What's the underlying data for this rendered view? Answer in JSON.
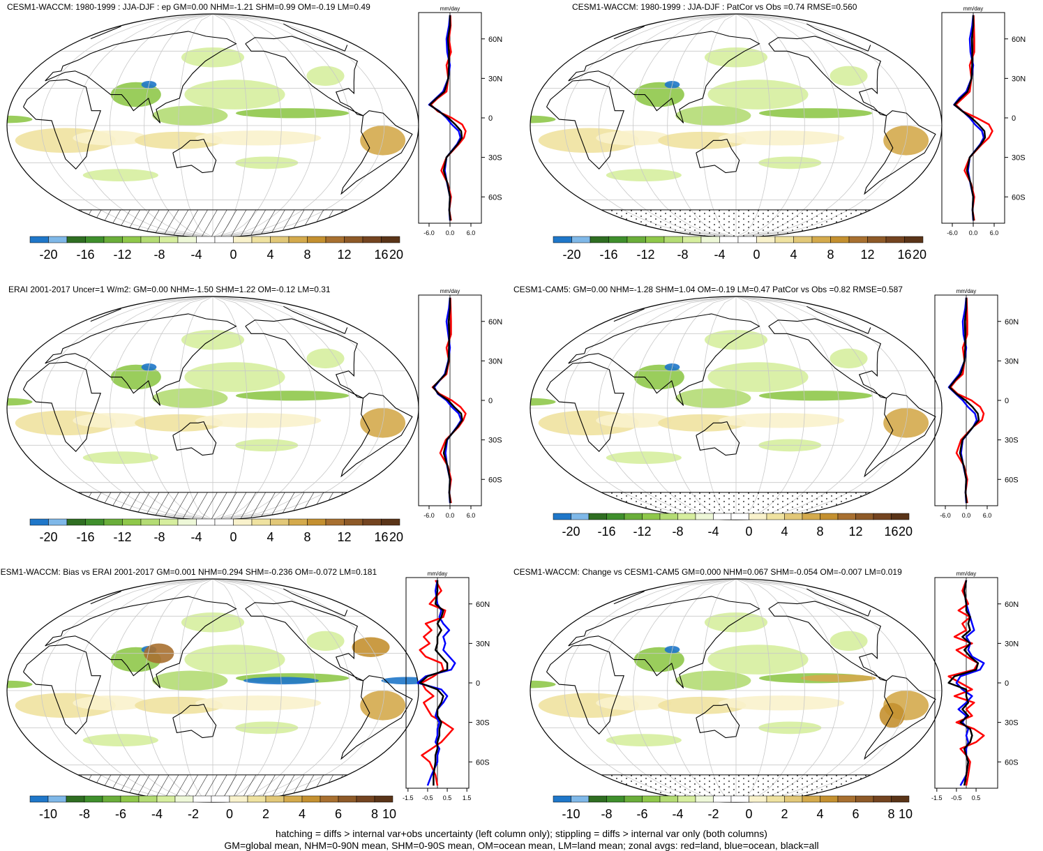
{
  "colors": {
    "scale": [
      "#1f77c9",
      "#7fb8e8",
      "#2f6e22",
      "#3f8f2c",
      "#6aae3a",
      "#8fc84a",
      "#b4dc74",
      "#d6ee9e",
      "#eef8d8",
      "#ffffff",
      "#ffffff",
      "#f9f2cc",
      "#efe2a0",
      "#e2c878",
      "#d4aa4c",
      "#c49030",
      "#a87030",
      "#8e5a28",
      "#744420",
      "#5a3418"
    ],
    "land_line": "#000000",
    "grid": "#c8c8c8",
    "series_land": "#ff0000",
    "series_ocean": "#0000ff",
    "series_all": "#000000"
  },
  "units": "mm/day",
  "panels": [
    {
      "id": "p1",
      "title": "CESM1-WACCM: 1980-1999 : JJA-DJF : ep GM=0.00 NHM=-1.21 SHM=0.99 OM=-0.19 LM=0.49",
      "hatch": true,
      "colorbar_ticks": [
        "-20",
        "-16",
        "-12",
        "-8",
        "-4",
        "0",
        "4",
        "8",
        "12",
        "16",
        "20"
      ],
      "zonal_xticks": [
        "-6.0",
        "0.0",
        "6.0"
      ],
      "zonal_xrange": [
        -9,
        9
      ],
      "lat_ticks": [
        "60N",
        "30N",
        "0",
        "30S",
        "60S"
      ]
    },
    {
      "id": "p2",
      "title": "CESM1-WACCM: 1980-1999 : JJA-DJF : PatCor vs Obs =0.74 RMSE=0.560",
      "hatch": false,
      "colorbar_ticks": [
        "-20",
        "-16",
        "-12",
        "-8",
        "-4",
        "0",
        "4",
        "8",
        "12",
        "16",
        "20"
      ],
      "zonal_xticks": [
        "-6.0",
        "0.0",
        "6.0"
      ],
      "zonal_xrange": [
        -9,
        9
      ],
      "lat_ticks": [
        "60N",
        "30N",
        "0",
        "30S",
        "60S"
      ]
    },
    {
      "id": "p3",
      "title": "ERAI 2001-2017 Uncer=1 W/m2: GM=0.00 NHM=-1.50 SHM=1.22 OM=-0.12 LM=0.31",
      "hatch": true,
      "colorbar_ticks": [
        "-20",
        "-16",
        "-12",
        "-8",
        "-4",
        "0",
        "4",
        "8",
        "12",
        "16",
        "20"
      ],
      "zonal_xticks": [
        "-6.0",
        "0.0",
        "6.0"
      ],
      "zonal_xrange": [
        -9,
        9
      ],
      "lat_ticks": [
        "60N",
        "30N",
        "0",
        "30S",
        "60S"
      ]
    },
    {
      "id": "p4",
      "title": "CESM1-CAM5: GM=0.00 NHM=-1.28 SHM=1.04 OM=-0.19 LM=0.47 PatCor vs Obs =0.82 RMSE=0.587",
      "hatch": false,
      "colorbar_ticks": [
        "-20",
        "-16",
        "-12",
        "-8",
        "-4",
        "0",
        "4",
        "8",
        "12",
        "16",
        "20"
      ],
      "zonal_xticks": [
        "-6.0",
        "0.0",
        "6.0"
      ],
      "zonal_xrange": [
        -9,
        9
      ],
      "lat_ticks": [
        "60N",
        "30N",
        "0",
        "30S",
        "60S"
      ]
    },
    {
      "id": "p5",
      "title": "CESM1-WACCM: Bias vs ERAI 2001-2017 GM=0.001 NHM=0.294 SHM=-0.236 OM=-0.072 LM=0.181",
      "hatch": true,
      "colorbar_ticks": [
        "-10",
        "-8",
        "-6",
        "-4",
        "-2",
        "0",
        "2",
        "4",
        "6",
        "8",
        "10"
      ],
      "zonal_xticks": [
        "-1.5",
        "-0.5",
        "0.5",
        "1.5"
      ],
      "zonal_xrange": [
        -1.6,
        1.6
      ],
      "lat_ticks": [
        "60N",
        "30N",
        "0",
        "30S",
        "60S"
      ]
    },
    {
      "id": "p6",
      "title": "CESM1-WACCM: Change vs CESM1-CAM5 GM=0.000 NHM=0.067 SHM=-0.054 OM=-0.007 LM=0.019",
      "hatch": false,
      "colorbar_ticks": [
        "-10",
        "-8",
        "-6",
        "-4",
        "-2",
        "0",
        "2",
        "4",
        "6",
        "8",
        "10"
      ],
      "zonal_xticks": [
        "-1.5",
        "-0.5",
        "0.5"
      ],
      "zonal_xrange": [
        -1.6,
        1.6
      ],
      "lat_ticks": [
        "60N",
        "30N",
        "0",
        "30S",
        "60S"
      ]
    }
  ],
  "chart_data": [
    {
      "type": "line",
      "panel": "p1",
      "lat": [
        -78,
        -70,
        -60,
        -50,
        -40,
        -30,
        -20,
        -15,
        -10,
        -5,
        0,
        5,
        10,
        15,
        20,
        30,
        40,
        50,
        60,
        70,
        78
      ],
      "series": [
        {
          "values": [
            0.3,
            -0.2,
            0.3,
            -0.6,
            -2.5,
            -1.0,
            2.5,
            4.0,
            4.5,
            3.5,
            0.5,
            -3.5,
            -5.5,
            -3.5,
            -1.0,
            -0.5,
            -1.0,
            0.3,
            -0.3,
            0.2,
            0.1
          ]
        },
        {
          "values": [
            0.0,
            -0.2,
            0.0,
            -0.8,
            -1.5,
            -1.0,
            2.0,
            3.0,
            2.5,
            0.5,
            -1.0,
            -3.0,
            -6.0,
            -4.0,
            -2.0,
            -0.5,
            0.0,
            -0.8,
            -1.0,
            -0.3,
            0.0
          ]
        },
        {
          "values": [
            0.1,
            -0.2,
            0.0,
            -0.7,
            -1.8,
            -1.0,
            2.2,
            3.4,
            3.2,
            1.5,
            -0.5,
            -3.2,
            -5.8,
            -3.8,
            -1.6,
            -0.5,
            -0.3,
            -0.3,
            -0.6,
            0.0,
            0.0
          ]
        }
      ]
    },
    {
      "type": "line",
      "panel": "p2",
      "lat": [
        -78,
        -70,
        -60,
        -50,
        -40,
        -30,
        -20,
        -15,
        -10,
        -5,
        0,
        5,
        10,
        15,
        20,
        30,
        40,
        50,
        60,
        70,
        78
      ],
      "series": [
        {
          "values": [
            0.3,
            -0.2,
            0.3,
            -0.6,
            -2.5,
            -1.0,
            2.5,
            4.5,
            5.5,
            4.5,
            1.0,
            -3.0,
            -5.0,
            -3.0,
            -1.0,
            -0.5,
            -1.0,
            0.3,
            0.3,
            0.2,
            0.1
          ]
        },
        {
          "values": [
            0.0,
            -0.2,
            0.0,
            -0.8,
            -1.5,
            -1.0,
            2.0,
            3.0,
            2.5,
            0.5,
            -1.0,
            -3.0,
            -5.5,
            -4.0,
            -2.0,
            -0.5,
            0.0,
            -0.8,
            -1.0,
            -0.3,
            0.0
          ]
        },
        {
          "values": [
            0.1,
            -0.2,
            0.0,
            -0.7,
            -1.8,
            -1.0,
            2.2,
            3.4,
            3.2,
            1.5,
            -0.5,
            -3.1,
            -5.4,
            -3.6,
            -1.6,
            -0.5,
            -0.3,
            -0.3,
            -0.4,
            0.0,
            0.0
          ]
        }
      ]
    },
    {
      "type": "line",
      "panel": "p3",
      "lat": [
        -78,
        -70,
        -60,
        -50,
        -40,
        -30,
        -20,
        -15,
        -10,
        -5,
        0,
        5,
        10,
        15,
        20,
        30,
        40,
        50,
        60,
        70,
        78
      ],
      "series": [
        {
          "values": [
            0.3,
            -0.2,
            0.3,
            -0.6,
            -2.8,
            -1.2,
            2.5,
            3.8,
            4.5,
            3.0,
            0.5,
            -3.0,
            -5.0,
            -3.0,
            -1.0,
            -0.3,
            -1.0,
            0.3,
            0.3,
            0.2,
            0.1
          ]
        },
        {
          "values": [
            0.0,
            -0.2,
            0.0,
            -0.8,
            -1.3,
            -0.8,
            2.0,
            3.2,
            2.5,
            0.5,
            -1.0,
            -3.5,
            -4.5,
            -3.0,
            -1.5,
            -0.5,
            0.0,
            -0.5,
            -1.0,
            -0.3,
            0.0
          ]
        },
        {
          "values": [
            0.1,
            -0.2,
            0.0,
            -0.7,
            -1.8,
            -0.9,
            2.2,
            3.5,
            3.2,
            1.2,
            -0.5,
            -3.3,
            -4.8,
            -3.1,
            -1.3,
            -0.4,
            -0.3,
            -0.2,
            -0.4,
            0.0,
            0.0
          ]
        }
      ]
    },
    {
      "type": "line",
      "panel": "p4",
      "lat": [
        -78,
        -70,
        -60,
        -50,
        -40,
        -30,
        -20,
        -15,
        -10,
        -5,
        0,
        5,
        10,
        15,
        20,
        30,
        40,
        50,
        60,
        70,
        78
      ],
      "series": [
        {
          "values": [
            0.3,
            -0.2,
            0.3,
            -0.6,
            -2.8,
            -1.5,
            2.0,
            4.5,
            5.0,
            4.0,
            1.5,
            -2.5,
            -4.5,
            -3.0,
            -1.0,
            -0.5,
            -1.0,
            0.3,
            0.3,
            0.2,
            0.1
          ]
        },
        {
          "values": [
            0.0,
            -0.2,
            0.0,
            -0.8,
            -1.5,
            -1.0,
            2.0,
            3.0,
            2.5,
            0.5,
            -1.0,
            -3.0,
            -5.0,
            -3.5,
            -2.0,
            -0.5,
            0.0,
            -0.8,
            -1.0,
            -0.3,
            0.0
          ]
        },
        {
          "values": [
            0.1,
            -0.2,
            0.0,
            -0.7,
            -1.8,
            -1.1,
            2.0,
            3.6,
            3.3,
            1.8,
            -0.2,
            -2.8,
            -4.8,
            -3.3,
            -1.6,
            -0.5,
            -0.3,
            -0.3,
            -0.4,
            0.0,
            0.0
          ]
        }
      ]
    },
    {
      "type": "line",
      "panel": "p5",
      "lat": [
        -78,
        -70,
        -60,
        -55,
        -50,
        -45,
        -40,
        -35,
        -30,
        -25,
        -20,
        -15,
        -10,
        -5,
        0,
        5,
        10,
        15,
        20,
        25,
        30,
        35,
        40,
        45,
        50,
        55,
        60,
        70,
        78
      ],
      "series": [
        {
          "values": [
            0.0,
            -0.1,
            -0.4,
            -0.8,
            -0.3,
            0.2,
            0.5,
            0.8,
            0.3,
            -0.3,
            -0.5,
            -0.7,
            -0.2,
            -0.6,
            -0.8,
            -0.2,
            0.3,
            0.2,
            -0.6,
            -0.9,
            -0.4,
            -0.7,
            -0.3,
            -0.6,
            0.3,
            0.4,
            -0.4,
            0.2,
            -0.1
          ]
        },
        {
          "values": [
            -0.5,
            -0.3,
            0.0,
            0.0,
            0.1,
            -0.1,
            0.0,
            0.0,
            0.1,
            -0.1,
            0.0,
            0.3,
            0.5,
            0.2,
            -1.0,
            -0.6,
            0.7,
            0.9,
            0.6,
            0.3,
            0.4,
            0.3,
            0.6,
            0.3,
            0.1,
            0.2,
            0.0,
            -0.1,
            0.0
          ]
        },
        {
          "values": [
            -0.2,
            -0.2,
            -0.1,
            -0.1,
            0.0,
            0.0,
            0.1,
            0.1,
            0.2,
            0.0,
            0.0,
            0.2,
            0.3,
            0.0,
            -0.9,
            -0.5,
            0.5,
            0.5,
            0.2,
            -0.1,
            0.0,
            0.0,
            0.2,
            0.0,
            0.2,
            0.3,
            -0.1,
            0.0,
            0.0
          ]
        }
      ]
    },
    {
      "type": "line",
      "panel": "p6",
      "lat": [
        -78,
        -70,
        -60,
        -55,
        -50,
        -45,
        -40,
        -35,
        -30,
        -25,
        -20,
        -15,
        -10,
        -5,
        0,
        5,
        10,
        15,
        20,
        25,
        30,
        35,
        40,
        45,
        50,
        55,
        60,
        70,
        78
      ],
      "series": [
        {
          "values": [
            0.0,
            0.1,
            0.2,
            0.0,
            -0.3,
            0.5,
            0.9,
            0.4,
            -0.5,
            0.3,
            0.0,
            0.4,
            -0.6,
            0.3,
            -0.3,
            -0.9,
            0.4,
            0.6,
            0.0,
            -0.5,
            0.3,
            -0.6,
            0.0,
            -0.2,
            0.2,
            -0.4,
            0.1,
            -0.2,
            0.0
          ]
        },
        {
          "values": [
            -0.3,
            0.0,
            0.1,
            0.0,
            0.0,
            0.1,
            0.0,
            0.1,
            -0.2,
            0.0,
            -0.4,
            0.0,
            0.3,
            -0.2,
            -0.5,
            -0.3,
            0.7,
            0.9,
            0.3,
            0.1,
            0.2,
            0.0,
            0.4,
            0.3,
            0.2,
            0.1,
            0.0,
            -0.1,
            0.0
          ]
        },
        {
          "values": [
            -0.1,
            0.0,
            0.1,
            0.0,
            -0.1,
            0.2,
            0.3,
            0.2,
            -0.3,
            0.1,
            -0.2,
            0.1,
            0.0,
            0.0,
            -0.9,
            -0.6,
            0.5,
            0.6,
            0.2,
            -0.1,
            0.2,
            -0.2,
            0.2,
            0.1,
            0.2,
            0.0,
            0.0,
            -0.1,
            0.0
          ]
        }
      ]
    }
  ],
  "footer": {
    "line1": "hatching = diffs > internal var+obs uncertainty (left column only); stippling = diffs > internal var only (both columns)",
    "line2": "GM=global mean, NHM=0-90N mean, SHM=0-90S mean, OM=ocean mean, LM=land mean; zonal avgs: red=land, blue=ocean, black=all"
  }
}
